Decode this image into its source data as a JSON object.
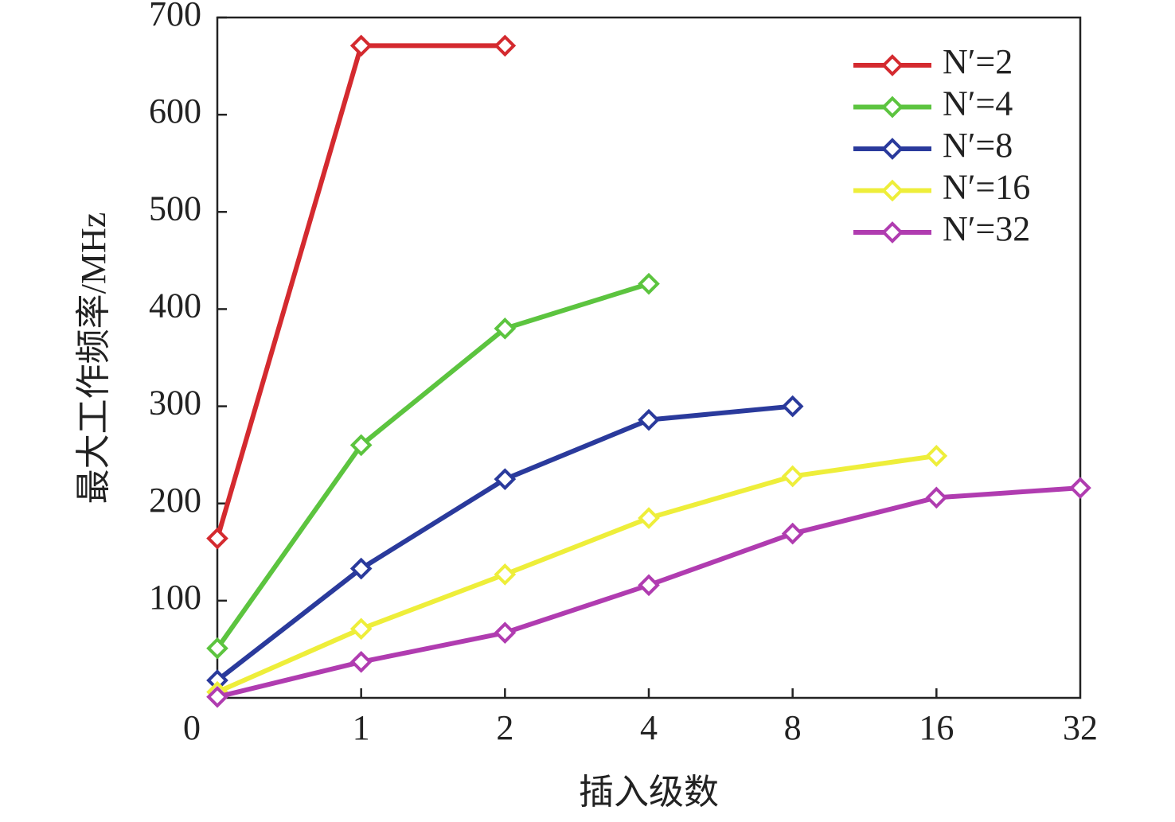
{
  "chart_data": {
    "type": "line",
    "x_label": "插入级数",
    "y_label": "最大工作频率/MHz",
    "categories": [
      "0",
      "1",
      "2",
      "4",
      "8",
      "16",
      "32"
    ],
    "ylim": [
      0,
      700
    ],
    "yticks": [
      100,
      200,
      300,
      400,
      500,
      600,
      700
    ],
    "legend": "top-right",
    "series": [
      {
        "name": "N′=2",
        "color": "#d42a2f",
        "values": [
          164,
          671,
          671,
          null,
          null,
          null,
          null
        ]
      },
      {
        "name": "N′=4",
        "color": "#5cc43f",
        "values": [
          51,
          260,
          380,
          426,
          null,
          null,
          null
        ]
      },
      {
        "name": "N′=8",
        "color": "#2a3a9c",
        "values": [
          18,
          133,
          225,
          286,
          300,
          null,
          null
        ]
      },
      {
        "name": "N′=16",
        "color": "#eeee3a",
        "values": [
          6,
          71,
          127,
          185,
          228,
          249,
          null
        ]
      },
      {
        "name": "N′=32",
        "color": "#b03cb0",
        "values": [
          1,
          37,
          67,
          116,
          169,
          206,
          216
        ]
      }
    ]
  }
}
